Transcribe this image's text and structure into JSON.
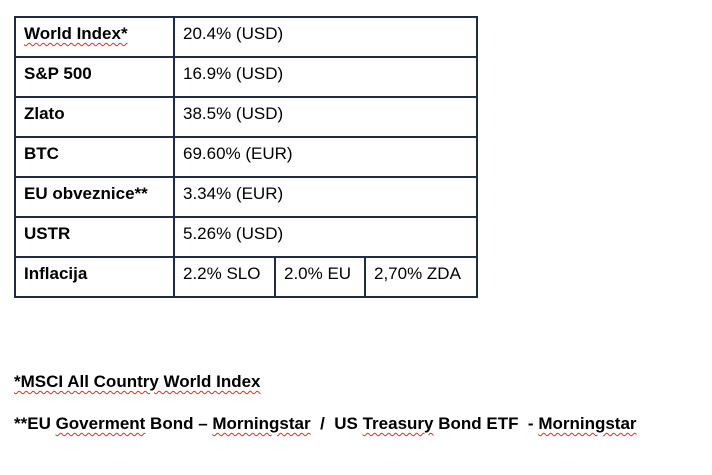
{
  "table": {
    "rows": [
      {
        "label": "World Index*",
        "value": "20.4% (USD)"
      },
      {
        "label": "S&P 500",
        "value": "16.9% (USD)"
      },
      {
        "label": "Zlato",
        "value": "38.5% (USD)"
      },
      {
        "label": "BTC",
        "value": "69.60% (EUR)"
      },
      {
        "label": "EU obveznice**",
        "value": "3.34% (EUR)"
      },
      {
        "label": "USTR",
        "value": "5.26% (USD)"
      }
    ],
    "inflation": {
      "label": "Inflacija",
      "values": [
        "2.2% SLO",
        "2.0% EU",
        "2,70% ZDA"
      ]
    }
  },
  "notes": {
    "note1": "*MSCI All Country World Index",
    "note2": {
      "prefix": "**EU ",
      "w1": "Goverment",
      "mid1": " Bond – ",
      "w2": "Morningstar",
      "mid2": "  /  US ",
      "w3": "Treasury",
      "mid3": " Bond ETF  - ",
      "w4": "Morningstar"
    }
  }
}
